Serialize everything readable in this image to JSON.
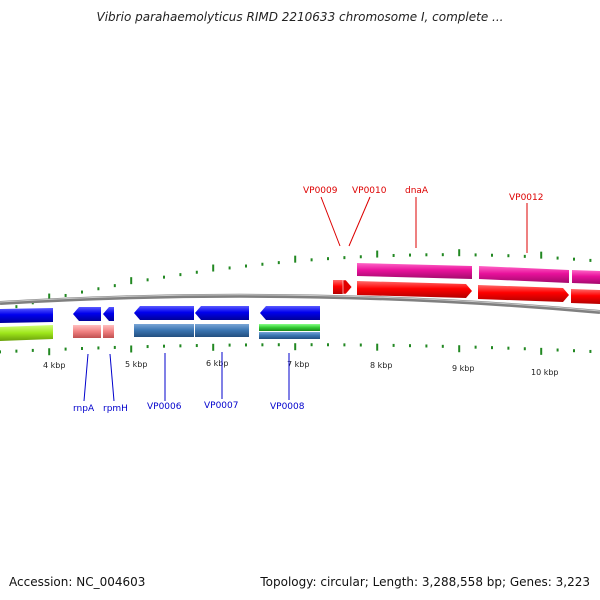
{
  "header": {
    "title": "Vibrio parahaemolyticus RIMD 2210633 chromosome I, complete ..."
  },
  "footer": {
    "accession": "Accession: NC_004603",
    "topology": "Topology: circular; Length: 3,288,558 bp; Genes: 3,223"
  },
  "colors": {
    "backbone": "#808080",
    "forward_label": "#dd0000",
    "reverse_label": "#0000cc",
    "tick": "#228822",
    "scale_text": "#222222"
  },
  "scale_labels": [
    "4 kbp",
    "5 kbp",
    "6 kbp",
    "7 kbp",
    "8 kbp",
    "9 kbp",
    "10 kbp"
  ],
  "forward_gene_labels": [
    "VP0009",
    "VP0010",
    "dnaA",
    "VP0012"
  ],
  "reverse_gene_labels": [
    "rnpA",
    "rpmH",
    "VP0006",
    "VP0007",
    "VP0008"
  ],
  "tracks": {
    "forward_cds": {
      "color": "#ff0000"
    },
    "forward_gene": {
      "color": "#e8119b"
    },
    "reverse_cds": {
      "color": "#0000ee"
    },
    "reverse_gene": {
      "color": "#3d78b4"
    },
    "other_features": [
      "#9ee61a",
      "#f08080",
      "#33cc33"
    ]
  }
}
